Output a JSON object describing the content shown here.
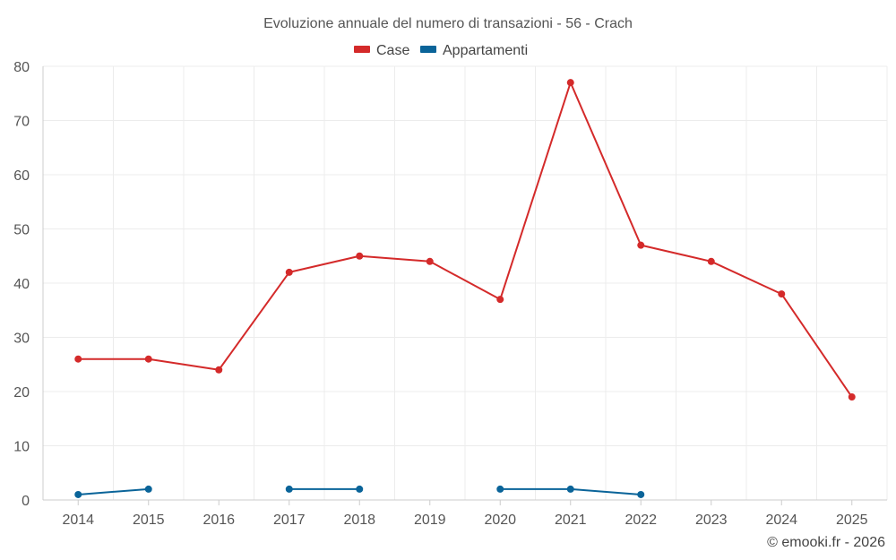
{
  "chart_data": {
    "type": "line",
    "title": "Evoluzione annuale del numero di transazioni - 56 - Crach",
    "categories": [
      "2014",
      "2015",
      "2016",
      "2017",
      "2018",
      "2019",
      "2020",
      "2021",
      "2022",
      "2023",
      "2024",
      "2025"
    ],
    "ylim": [
      0,
      80
    ],
    "yticks": [
      0,
      10,
      20,
      30,
      40,
      50,
      60,
      70,
      80
    ],
    "grid": true,
    "legend_position": "top-center",
    "series": [
      {
        "name": "Case",
        "color": "#d42a2a",
        "values": [
          26,
          26,
          24,
          42,
          45,
          44,
          37,
          77,
          47,
          44,
          38,
          19
        ]
      },
      {
        "name": "Appartamenti",
        "color": "#0a6499",
        "values": [
          1,
          2,
          null,
          2,
          2,
          null,
          2,
          2,
          1,
          null,
          null,
          null
        ]
      }
    ]
  },
  "credit": "© emooki.fr - 2026"
}
